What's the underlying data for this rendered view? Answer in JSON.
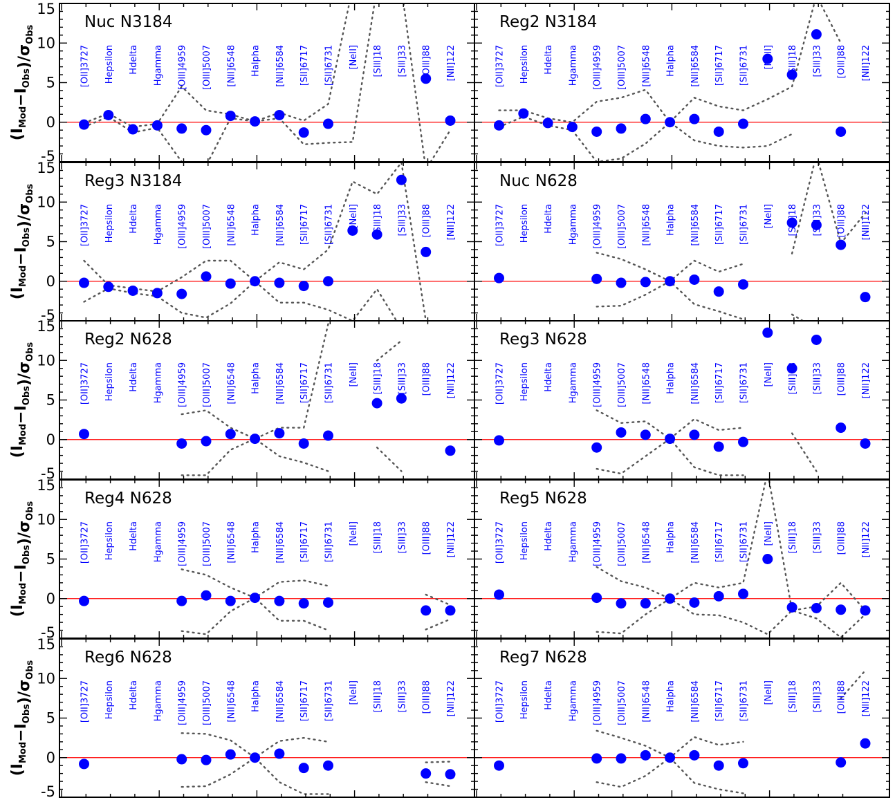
{
  "chart_data": {
    "type": "scatter",
    "ylabel": {
      "main": "(I",
      "sub_mod": "Mod",
      "minus": "−I",
      "sub_obs": "Obs",
      "close": ")/σ",
      "sub_sigma": "Obs"
    },
    "ylim": [
      -5,
      15
    ],
    "yticks": [
      "15",
      "10",
      "5",
      "0",
      "-5"
    ],
    "zero_line": 0,
    "colors": {
      "points": "#0000ff",
      "labels": "#0000ff",
      "zero_line": "#ff0000",
      "band": "#555555",
      "axes": "#000000"
    },
    "lines": [
      "[OII]3727",
      "Hepsilon",
      "Hdelta",
      "Hgamma",
      "[OIII]4959",
      "[OIII]5007",
      "[NII]6548",
      "Halpha",
      "[NII]6584",
      "[SII]6717",
      "[SII]6731",
      "[NeII]",
      "[SIII]18",
      "[SIII]33",
      "[OIII]88",
      "[NII]122"
    ],
    "panels": [
      {
        "title": "Nuc N3184",
        "values": [
          -0.3,
          0.9,
          -0.9,
          -0.4,
          -0.8,
          -1.0,
          0.8,
          0.1,
          0.9,
          -1.3,
          -0.2,
          null,
          null,
          null,
          5.5,
          0.2
        ],
        "upper": [
          -0.1,
          1.1,
          -0.6,
          -0.2,
          4.5,
          1.5,
          1.0,
          0.1,
          1.2,
          0.2,
          2.3,
          17.0,
          17.0,
          17.0,
          null,
          1.5
        ],
        "lower": [
          -0.6,
          0.7,
          -1.3,
          -0.7,
          -5.0,
          -5.5,
          0.5,
          0.1,
          0.5,
          -2.8,
          -2.6,
          -2.5,
          17.0,
          17.0,
          -6.0,
          -1.0
        ]
      },
      {
        "title": "Reg2 N3184",
        "values": [
          -0.4,
          1.1,
          -0.1,
          -0.6,
          -1.2,
          -0.8,
          0.4,
          0.0,
          0.4,
          -1.2,
          -0.2,
          8.0,
          6.0,
          11.1,
          -1.2,
          null
        ],
        "upper": [
          1.5,
          1.5,
          0.5,
          0.0,
          2.6,
          3.1,
          4.1,
          0.0,
          3.1,
          2.0,
          1.5,
          2.9,
          4.5,
          16.0,
          10.0,
          null
        ],
        "lower": [
          -0.6,
          0.7,
          -0.4,
          -1.0,
          -5.0,
          -4.6,
          -2.7,
          0.0,
          -2.3,
          -3.0,
          -3.2,
          -3.0,
          -1.5,
          null,
          null,
          null
        ]
      },
      {
        "title": "Reg3 N3184",
        "values": [
          -0.2,
          -0.7,
          -1.2,
          -1.5,
          -1.6,
          0.6,
          -0.3,
          0.0,
          -0.2,
          -0.6,
          0.0,
          6.4,
          5.9,
          12.8,
          3.7,
          null
        ],
        "upper": [
          2.6,
          -0.5,
          -0.9,
          -1.3,
          0.5,
          2.6,
          2.6,
          0.0,
          2.4,
          1.5,
          4.0,
          12.6,
          11.0,
          15.0,
          -5.0,
          null
        ],
        "lower": [
          -2.6,
          -0.9,
          -1.5,
          -1.9,
          -4.0,
          -4.6,
          -2.8,
          0.0,
          -2.7,
          -2.7,
          -3.6,
          -5.0,
          -1.0,
          -6.0,
          -5.0,
          null
        ]
      },
      {
        "title": "Nuc N628",
        "values": [
          0.4,
          null,
          null,
          null,
          0.3,
          -0.2,
          -0.1,
          0.0,
          0.2,
          -1.3,
          -0.4,
          null,
          7.4,
          7.1,
          4.6,
          -2.0
        ],
        "upper": [
          null,
          null,
          null,
          null,
          3.6,
          2.8,
          1.5,
          0.0,
          2.6,
          1.2,
          2.2,
          null,
          3.5,
          16.0,
          4.8,
          8.6
        ],
        "lower": [
          null,
          null,
          null,
          null,
          -3.2,
          -3.1,
          -1.7,
          0.0,
          -2.9,
          -3.8,
          -4.8,
          null,
          -4.2,
          -6.0,
          null,
          -6.0
        ]
      },
      {
        "title": "Reg2 N628",
        "values": [
          0.7,
          null,
          null,
          null,
          -0.5,
          -0.2,
          0.7,
          0.1,
          0.8,
          -0.5,
          0.5,
          null,
          4.6,
          5.2,
          null,
          -1.4
        ],
        "upper": [
          null,
          null,
          null,
          null,
          3.2,
          3.7,
          1.5,
          0.1,
          1.5,
          1.5,
          14.6,
          null,
          10.0,
          12.5,
          null,
          15.0
        ],
        "lower": [
          null,
          null,
          null,
          null,
          -4.5,
          -4.5,
          -1.3,
          0.1,
          -2.1,
          -2.9,
          -4.0,
          null,
          -1.0,
          -4.0,
          null,
          -5.0
        ]
      },
      {
        "title": "Reg3 N628",
        "values": [
          -0.1,
          null,
          null,
          null,
          -1.0,
          0.9,
          0.6,
          0.1,
          0.6,
          -0.9,
          -0.3,
          13.5,
          9.0,
          12.6,
          1.5,
          -0.5
        ],
        "upper": [
          null,
          null,
          null,
          null,
          3.7,
          2.1,
          2.3,
          0.1,
          2.6,
          1.2,
          1.5,
          null,
          0.8,
          -4.0,
          null,
          -5.0
        ],
        "lower": [
          null,
          null,
          null,
          null,
          -3.7,
          -4.3,
          -2.1,
          0.1,
          -3.5,
          -4.5,
          -4.5,
          null,
          -5.0,
          null,
          null,
          null
        ]
      },
      {
        "title": "Reg4 N628",
        "values": [
          -0.3,
          null,
          null,
          null,
          -0.3,
          0.4,
          -0.3,
          0.1,
          -0.3,
          -0.6,
          -0.5,
          null,
          null,
          null,
          -1.5,
          -1.5
        ],
        "upper": [
          null,
          null,
          null,
          null,
          3.7,
          3.0,
          1.4,
          0.1,
          2.1,
          2.3,
          1.6,
          null,
          null,
          null,
          0.5,
          -0.8
        ],
        "lower": [
          null,
          null,
          null,
          null,
          -4.1,
          -4.5,
          -1.6,
          0.1,
          -2.8,
          -2.8,
          -4.0,
          null,
          null,
          null,
          -3.9,
          -2.6
        ]
      },
      {
        "title": "Reg5 N628",
        "values": [
          0.5,
          null,
          null,
          null,
          0.1,
          -0.6,
          -0.6,
          0.0,
          -0.5,
          0.3,
          0.6,
          5.0,
          -1.1,
          -1.2,
          -1.4,
          -1.5
        ],
        "upper": [
          null,
          null,
          null,
          null,
          4.0,
          2.2,
          1.4,
          0.0,
          2.0,
          1.4,
          2.0,
          16.0,
          -1.5,
          -1.0,
          2.0,
          -1.5
        ],
        "lower": [
          null,
          null,
          null,
          null,
          -4.2,
          -4.4,
          -2.0,
          0.0,
          -2.0,
          -2.1,
          -3.0,
          -4.5,
          -1.5,
          -2.5,
          -4.9,
          -2.0
        ]
      },
      {
        "title": "Reg6 N628",
        "values": [
          -0.8,
          null,
          null,
          null,
          -0.2,
          -0.3,
          0.4,
          0.0,
          0.5,
          -1.3,
          -1.0,
          null,
          null,
          null,
          -2.0,
          -2.1
        ],
        "upper": [
          null,
          null,
          null,
          null,
          3.1,
          3.0,
          2.2,
          0.0,
          2.1,
          2.5,
          2.0,
          null,
          null,
          null,
          -0.6,
          -0.5
        ],
        "lower": [
          null,
          null,
          null,
          null,
          -3.7,
          -3.6,
          -2.1,
          0.0,
          -3.1,
          -4.6,
          -4.6,
          null,
          null,
          null,
          -3.1,
          -3.6
        ]
      },
      {
        "title": "Reg7 N628",
        "values": [
          -1.0,
          null,
          null,
          null,
          -0.1,
          -0.1,
          0.3,
          0.0,
          0.3,
          -1.0,
          -0.7,
          null,
          null,
          null,
          -0.6,
          1.8
        ],
        "upper": [
          null,
          null,
          null,
          null,
          3.4,
          2.5,
          1.5,
          0.0,
          2.6,
          1.6,
          2.0,
          null,
          null,
          null,
          7.5,
          11.0
        ],
        "lower": [
          null,
          null,
          null,
          null,
          -3.1,
          -3.7,
          -2.3,
          0.0,
          -3.2,
          -4.0,
          -4.5,
          null,
          null,
          null,
          null,
          null
        ]
      }
    ]
  }
}
